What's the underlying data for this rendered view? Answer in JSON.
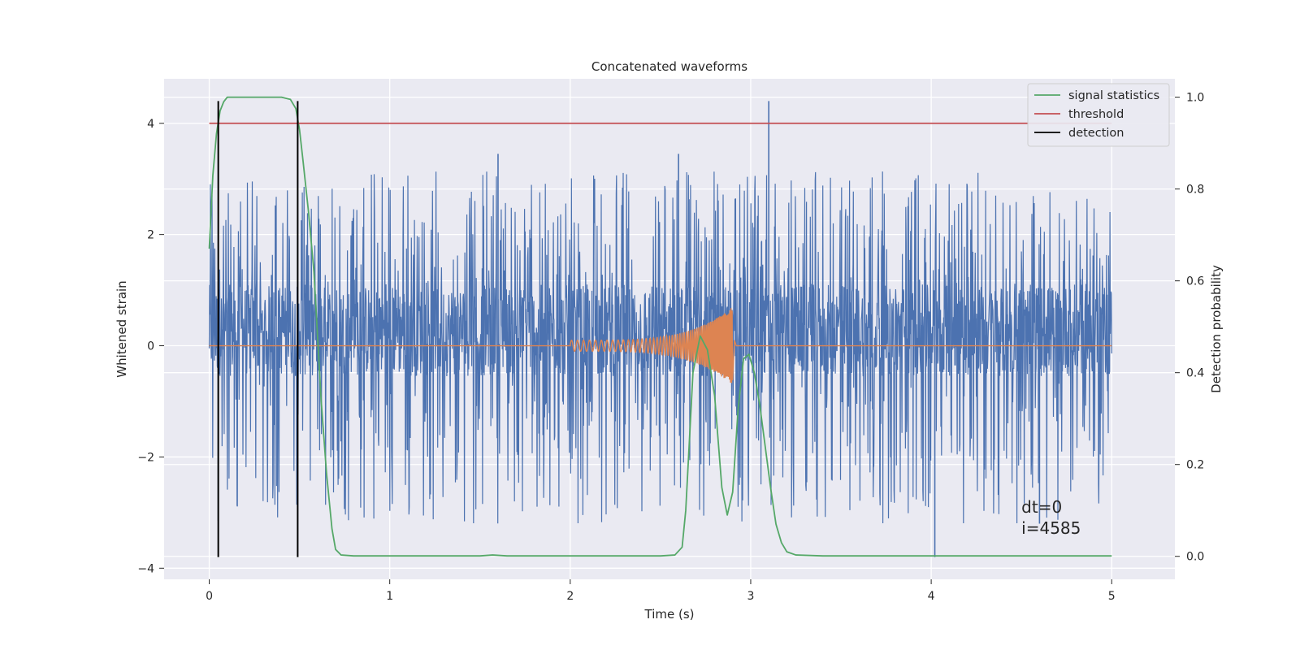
{
  "chart_data": {
    "type": "line",
    "title": "Concatenated waveforms",
    "xlabel": "Time (s)",
    "ylabel_left": "Whitened strain",
    "ylabel_right": "Detection probability",
    "xlim": [
      -0.25,
      5.35
    ],
    "ylim_left": [
      -4.2,
      4.8
    ],
    "ylim_right": [
      -0.05,
      1.04
    ],
    "x_ticks": [
      0,
      1,
      2,
      3,
      4,
      5
    ],
    "x_tick_labels": [
      "0",
      "1",
      "2",
      "3",
      "4",
      "5"
    ],
    "y_left_ticks": [
      -4,
      -2,
      0,
      2,
      4
    ],
    "y_left_tick_labels": [
      "−4",
      "−2",
      "0",
      "2",
      "4"
    ],
    "y_right_ticks": [
      0.0,
      0.2,
      0.4,
      0.6,
      0.8,
      1.0
    ],
    "y_right_tick_labels": [
      "0.0",
      "0.2",
      "0.4",
      "0.6",
      "0.8",
      "1.0"
    ],
    "grid": true,
    "legend_placement": "upper-right",
    "series": [
      {
        "name": "",
        "axis": "left",
        "kind": "noise",
        "color": "#4c72b0",
        "x_range": [
          0,
          5
        ],
        "core_range": [
          -0.55,
          1.1
        ],
        "envelope_range": [
          -3.2,
          3.5
        ],
        "spikes": [
          [
            0.05,
            -3.15
          ],
          [
            1.6,
            3.45
          ],
          [
            2.6,
            3.45
          ],
          [
            3.1,
            4.4
          ],
          [
            4.02,
            -3.8
          ],
          [
            4.6,
            -3.2
          ]
        ]
      },
      {
        "name": "",
        "axis": "left",
        "kind": "chirp",
        "color": "#dd8452",
        "x_range": [
          0,
          5
        ],
        "chirp_start": 2.0,
        "chirp_end": 2.9,
        "start_amplitude": 0.1,
        "peak": 0.7,
        "trough": -0.6
      },
      {
        "name": "signal statistics",
        "axis": "right",
        "color": "#55a868",
        "x": [
          0.0,
          0.02,
          0.04,
          0.06,
          0.08,
          0.1,
          0.15,
          0.2,
          0.3,
          0.4,
          0.45,
          0.48,
          0.5,
          0.52,
          0.55,
          0.58,
          0.6,
          0.62,
          0.65,
          0.68,
          0.7,
          0.73,
          0.8,
          1.0,
          1.5,
          1.57,
          1.65,
          2.0,
          2.5,
          2.58,
          2.62,
          2.64,
          2.66,
          2.68,
          2.72,
          2.76,
          2.8,
          2.84,
          2.87,
          2.9,
          2.93,
          2.96,
          2.99,
          3.02,
          3.05,
          3.08,
          3.11,
          3.14,
          3.17,
          3.2,
          3.25,
          3.4,
          4.0,
          5.0
        ],
        "y": [
          0.67,
          0.83,
          0.92,
          0.97,
          0.99,
          1.0,
          1.0,
          1.0,
          1.0,
          1.0,
          0.995,
          0.975,
          0.93,
          0.86,
          0.75,
          0.62,
          0.48,
          0.34,
          0.18,
          0.06,
          0.015,
          0.003,
          0.001,
          0.001,
          0.001,
          0.003,
          0.001,
          0.001,
          0.001,
          0.003,
          0.02,
          0.1,
          0.25,
          0.4,
          0.48,
          0.45,
          0.35,
          0.15,
          0.09,
          0.14,
          0.32,
          0.43,
          0.44,
          0.4,
          0.33,
          0.24,
          0.15,
          0.07,
          0.03,
          0.01,
          0.003,
          0.001,
          0.001,
          0.001
        ]
      },
      {
        "name": "threshold",
        "axis": "left",
        "color": "#c44e52",
        "x": [
          0,
          5
        ],
        "y": [
          4,
          4
        ]
      },
      {
        "name": "detection",
        "axis": "left",
        "color": "#000000",
        "kind": "vlines",
        "x": [
          0.05,
          0.49
        ],
        "ymin": -3.8,
        "ymax": 4.4
      }
    ],
    "annotations": [
      {
        "text": "dt=0",
        "x": 4.5,
        "y": -3.0
      },
      {
        "text": "i=4585",
        "x": 4.5,
        "y": -3.38
      }
    ]
  }
}
